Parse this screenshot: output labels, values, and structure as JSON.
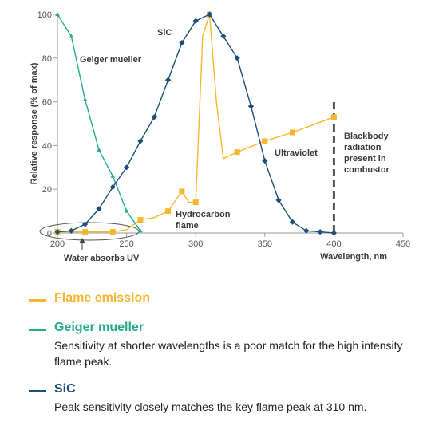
{
  "chart_data": {
    "type": "line",
    "xlabel": "Wavelength, nm",
    "ylabel": "Relative response (% of max)",
    "xlim": [
      200,
      450
    ],
    "ylim": [
      0,
      100
    ],
    "x_ticks": [
      "200",
      "250",
      "300",
      "350",
      "400",
      "450"
    ],
    "y_ticks": [
      "0",
      "20",
      "40",
      "60",
      "80",
      "100"
    ],
    "grid": false,
    "series": [
      {
        "name": "SiC",
        "color": "#1d4f7a",
        "marker": "diamond",
        "points": [
          [
            200,
            0.5
          ],
          [
            210,
            1
          ],
          [
            220,
            4
          ],
          [
            230,
            11
          ],
          [
            240,
            21
          ],
          [
            250,
            30
          ],
          [
            260,
            42
          ],
          [
            270,
            53
          ],
          [
            280,
            70
          ],
          [
            290,
            87
          ],
          [
            300,
            97
          ],
          [
            310,
            100
          ],
          [
            320,
            90
          ],
          [
            330,
            80
          ],
          [
            340,
            58
          ],
          [
            350,
            33
          ],
          [
            360,
            15
          ],
          [
            370,
            5
          ],
          [
            380,
            1
          ],
          [
            390,
            0.5
          ],
          [
            400,
            0
          ]
        ]
      },
      {
        "name": "Geiger mueller",
        "color": "#26a98c",
        "marker": "triangle",
        "points": [
          [
            200,
            100
          ],
          [
            210,
            90
          ],
          [
            220,
            61
          ],
          [
            230,
            38
          ],
          [
            240,
            26
          ],
          [
            250,
            10
          ],
          [
            260,
            1
          ]
        ]
      },
      {
        "name": "Flame emission",
        "color": "#f4b830",
        "marker": "square",
        "points": [
          [
            200,
            0.5
          ],
          [
            220,
            0.5
          ],
          [
            240,
            0.5
          ],
          [
            250,
            1.5
          ],
          [
            260,
            6
          ],
          [
            270,
            7
          ],
          [
            280,
            10
          ],
          [
            290,
            19
          ],
          [
            295,
            14
          ],
          [
            300,
            14
          ],
          [
            305,
            90
          ],
          [
            310,
            100
          ],
          [
            315,
            60
          ],
          [
            320,
            34
          ],
          [
            330,
            37
          ],
          [
            350,
            42
          ],
          [
            370,
            46
          ],
          [
            400,
            53
          ]
        ],
        "marked_points": [
          [
            200,
            0.5
          ],
          [
            220,
            0.5
          ],
          [
            240,
            0.5
          ],
          [
            260,
            6
          ],
          [
            280,
            10
          ],
          [
            290,
            19
          ],
          [
            300,
            14
          ],
          [
            310,
            100
          ],
          [
            330,
            37
          ],
          [
            350,
            42
          ],
          [
            370,
            46
          ],
          [
            400,
            53
          ]
        ]
      }
    ],
    "annotations": {
      "sic": "SiC",
      "geiger": "Geiger mueller",
      "hydrocarbon_line1": "Hydrocarbon",
      "hydrocarbon_line2": "flame",
      "ultraviolet": "Ultraviolet",
      "blackbody_line1": "Blackbody",
      "blackbody_line2": "radiation",
      "blackbody_line3": "present in",
      "blackbody_line4": "combustor",
      "water": "Water absorbs UV"
    },
    "blackbody_marker_x": 400
  },
  "legend": [
    {
      "title": "Flame emission",
      "color": "#f4b830",
      "description": ""
    },
    {
      "title": "Geiger mueller",
      "color": "#26a98c",
      "description": "Sensitivity at shorter wavelengths is a poor match for the high intensity flame peak."
    },
    {
      "title": "SiC",
      "color": "#1d4f7a",
      "description": "Peak sensitivity closely matches the key flame peak at 310 nm."
    }
  ]
}
